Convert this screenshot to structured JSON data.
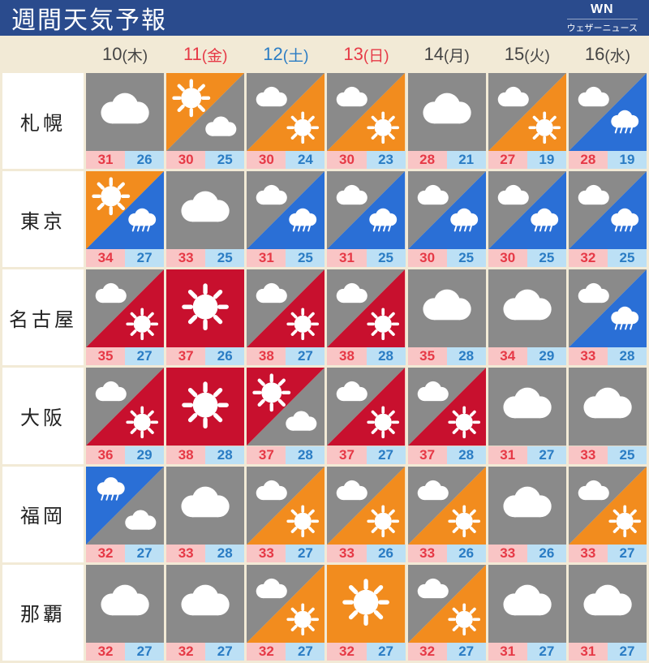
{
  "header": {
    "title": "週間天気予報",
    "logo_top": "WN",
    "logo_bottom": "ウェザーニュース"
  },
  "colors": {
    "header_bg": "#2a4b8d",
    "grid_bg": "#f2ead6",
    "day_default": "#444444",
    "day_red": "#e63946",
    "day_blue": "#2a7cc4",
    "hi_bg": "#f9c5c5",
    "hi_fg": "#e63946",
    "lo_bg": "#bce0f5",
    "lo_fg": "#2a7cc4",
    "icon_gray": "#8a8a8a",
    "icon_orange": "#f28c1e",
    "icon_red": "#c8102e",
    "icon_blue": "#2a6fd6",
    "icon_white": "#ffffff"
  },
  "days": [
    {
      "num": "10",
      "dow": "(木)",
      "color": "#444444"
    },
    {
      "num": "11",
      "dow": "(金)",
      "color": "#e63946"
    },
    {
      "num": "12",
      "dow": "(土)",
      "color": "#2a7cc4"
    },
    {
      "num": "13",
      "dow": "(日)",
      "color": "#e63946"
    },
    {
      "num": "14",
      "dow": "(月)",
      "color": "#444444"
    },
    {
      "num": "15",
      "dow": "(火)",
      "color": "#444444"
    },
    {
      "num": "16",
      "dow": "(水)",
      "color": "#444444"
    }
  ],
  "cities": [
    "札幌",
    "東京",
    "名古屋",
    "大阪",
    "福岡",
    "那覇"
  ],
  "forecast": [
    [
      {
        "icon": "cloud",
        "hi": 31,
        "lo": 26
      },
      {
        "icon": "sun_cloud_orange",
        "hi": 30,
        "lo": 25
      },
      {
        "icon": "cloud_sun_gray",
        "hi": 30,
        "lo": 24
      },
      {
        "icon": "cloud_sun_gray",
        "hi": 30,
        "lo": 23
      },
      {
        "icon": "cloud",
        "hi": 28,
        "lo": 21
      },
      {
        "icon": "cloud_sun_gray",
        "hi": 27,
        "lo": 19
      },
      {
        "icon": "cloud_rain_gray",
        "hi": 28,
        "lo": 19
      }
    ],
    [
      {
        "icon": "sun_rain_orange",
        "hi": 34,
        "lo": 27
      },
      {
        "icon": "cloud",
        "hi": 33,
        "lo": 25
      },
      {
        "icon": "cloud_rain_gray",
        "hi": 31,
        "lo": 25
      },
      {
        "icon": "cloud_rain_gray",
        "hi": 31,
        "lo": 25
      },
      {
        "icon": "cloud_rain_gray",
        "hi": 30,
        "lo": 25
      },
      {
        "icon": "cloud_rain_gray",
        "hi": 30,
        "lo": 25
      },
      {
        "icon": "cloud_rain_gray",
        "hi": 32,
        "lo": 25
      }
    ],
    [
      {
        "icon": "cloud_hotsun_gray",
        "hi": 35,
        "lo": 27
      },
      {
        "icon": "hotsun_red",
        "hi": 37,
        "lo": 26
      },
      {
        "icon": "cloud_hotsun_gray",
        "hi": 38,
        "lo": 27
      },
      {
        "icon": "cloud_hotsun_gray",
        "hi": 38,
        "lo": 28
      },
      {
        "icon": "cloud",
        "hi": 35,
        "lo": 28
      },
      {
        "icon": "cloud",
        "hi": 34,
        "lo": 29
      },
      {
        "icon": "cloud_rain_gray",
        "hi": 33,
        "lo": 28
      }
    ],
    [
      {
        "icon": "cloud_hotsun_gray",
        "hi": 36,
        "lo": 29
      },
      {
        "icon": "hotsun_red",
        "hi": 38,
        "lo": 28
      },
      {
        "icon": "hotsun_cloud_red",
        "hi": 37,
        "lo": 28
      },
      {
        "icon": "cloud_hotsun_gray",
        "hi": 37,
        "lo": 27
      },
      {
        "icon": "cloud_hotsun_gray",
        "hi": 37,
        "lo": 28
      },
      {
        "icon": "cloud",
        "hi": 31,
        "lo": 27
      },
      {
        "icon": "cloud",
        "hi": 33,
        "lo": 25
      }
    ],
    [
      {
        "icon": "rain_cloud_blue",
        "hi": 32,
        "lo": 27
      },
      {
        "icon": "cloud",
        "hi": 33,
        "lo": 28
      },
      {
        "icon": "cloud_sun_gray",
        "hi": 33,
        "lo": 27
      },
      {
        "icon": "cloud_sun_gray",
        "hi": 33,
        "lo": 26
      },
      {
        "icon": "cloud_sun_gray",
        "hi": 33,
        "lo": 26
      },
      {
        "icon": "cloud",
        "hi": 33,
        "lo": 26
      },
      {
        "icon": "cloud_sun_gray",
        "hi": 33,
        "lo": 27
      }
    ],
    [
      {
        "icon": "cloud",
        "hi": 32,
        "lo": 27
      },
      {
        "icon": "cloud",
        "hi": 32,
        "lo": 27
      },
      {
        "icon": "cloud_sun_gray",
        "hi": 32,
        "lo": 27
      },
      {
        "icon": "sun_orange",
        "hi": 32,
        "lo": 27
      },
      {
        "icon": "cloud_sun_gray",
        "hi": 32,
        "lo": 27
      },
      {
        "icon": "cloud",
        "hi": 31,
        "lo": 27
      },
      {
        "icon": "cloud",
        "hi": 31,
        "lo": 27
      }
    ]
  ]
}
